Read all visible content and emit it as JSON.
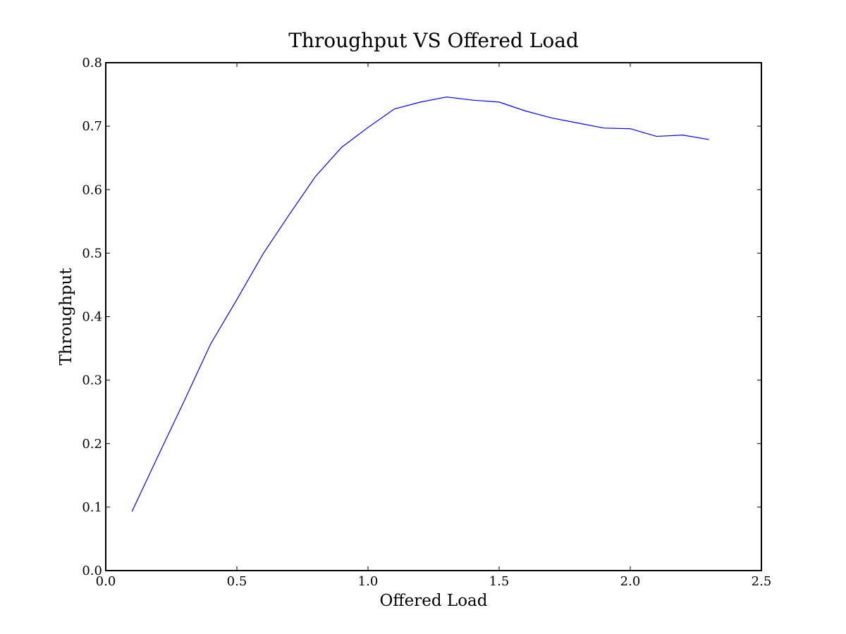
{
  "chart_data": {
    "type": "line",
    "title": "Throughput VS Offered Load",
    "xlabel": "Offered Load",
    "ylabel": "Throughput",
    "xlim": [
      0.0,
      2.5
    ],
    "ylim": [
      0.0,
      0.8
    ],
    "xticks": [
      "0.0",
      "0.5",
      "1.0",
      "1.5",
      "2.0",
      "2.5"
    ],
    "yticks": [
      "0.0",
      "0.1",
      "0.2",
      "0.3",
      "0.4",
      "0.5",
      "0.6",
      "0.7",
      "0.8"
    ],
    "grid": false,
    "series": [
      {
        "color": "#0000ff",
        "x": [
          0.1,
          0.2,
          0.3,
          0.4,
          0.5,
          0.6,
          0.7,
          0.8,
          0.9,
          1.0,
          1.1,
          1.2,
          1.3,
          1.4,
          1.5,
          1.6,
          1.7,
          1.8,
          1.9,
          2.0,
          2.1,
          2.2,
          2.3
        ],
        "y": [
          0.093,
          0.181,
          0.268,
          0.357,
          0.427,
          0.499,
          0.561,
          0.621,
          0.667,
          0.698,
          0.727,
          0.738,
          0.746,
          0.741,
          0.738,
          0.724,
          0.713,
          0.705,
          0.697,
          0.696,
          0.684,
          0.686,
          0.679
        ]
      }
    ]
  }
}
